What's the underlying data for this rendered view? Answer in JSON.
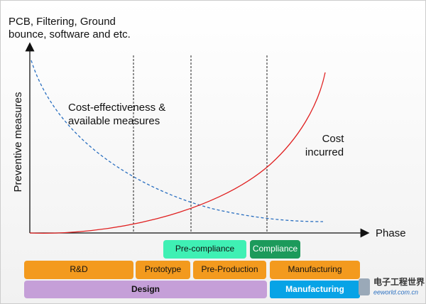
{
  "header": {
    "lines": [
      "PCB, Filtering, Ground",
      "bounce, software and etc."
    ]
  },
  "y_axis_label": "Preventive measures",
  "x_axis_label": "Phase",
  "curve_labels": {
    "measures": [
      "Cost-effectiveness &",
      "available measures"
    ],
    "cost": [
      "Cost",
      "incurred"
    ]
  },
  "compliance_row": [
    "Pre-compliance",
    "Compliance"
  ],
  "phase_row": [
    "R&D",
    "Prototype",
    "Pre-Production",
    "Manufacturing"
  ],
  "stage_row": [
    "Design",
    "Manufacturing"
  ],
  "watermark": {
    "title": "电子工程世界",
    "site": "eeworld.com.cn"
  }
}
